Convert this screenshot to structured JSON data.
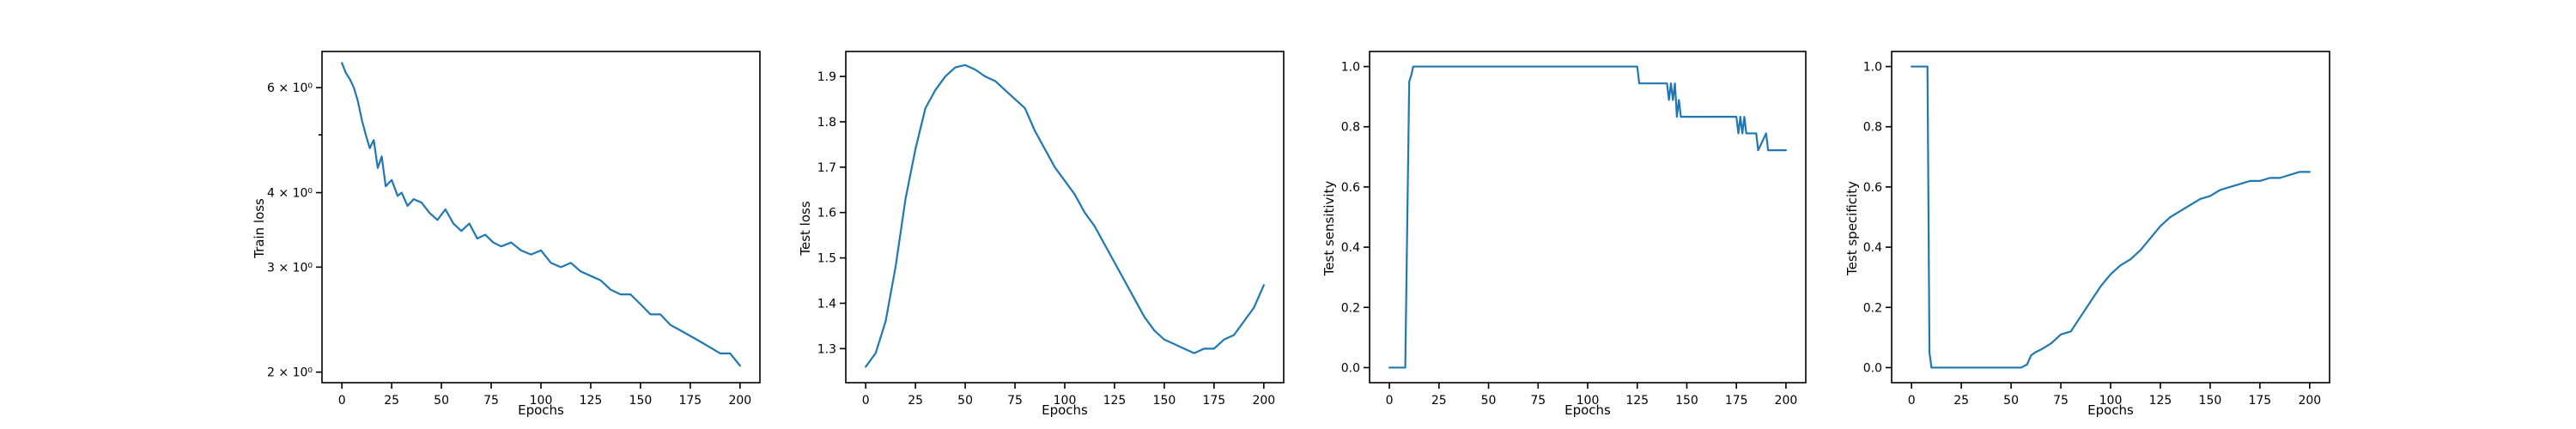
{
  "colors": {
    "series": "#1f77b4",
    "axes": "#000000",
    "background": "#ffffff"
  },
  "chart_data": [
    {
      "type": "line",
      "xlabel": "Epochs",
      "ylabel": "Train loss",
      "yscale": "log",
      "grid": false,
      "xlim": [
        -10,
        210
      ],
      "ylim": [
        1.92,
        6.9
      ],
      "xticks": [
        0,
        25,
        50,
        75,
        100,
        125,
        150,
        175,
        200
      ],
      "xtick_labels": [
        "0",
        "25",
        "50",
        "75",
        "100",
        "125",
        "150",
        "175",
        "200"
      ],
      "yticks": [
        2,
        3,
        4,
        6
      ],
      "ytick_labels": [
        "2 × 10⁰",
        "3 × 10⁰",
        "4 × 10⁰",
        "6 × 10⁰"
      ],
      "x": [
        0,
        2,
        4,
        6,
        8,
        10,
        12,
        14,
        16,
        18,
        20,
        22,
        25,
        28,
        30,
        33,
        36,
        40,
        44,
        48,
        52,
        56,
        60,
        64,
        68,
        72,
        76,
        80,
        85,
        90,
        95,
        100,
        105,
        110,
        115,
        120,
        125,
        130,
        135,
        140,
        145,
        150,
        155,
        160,
        165,
        170,
        175,
        180,
        185,
        190,
        195,
        200
      ],
      "y": [
        6.6,
        6.35,
        6.2,
        6.0,
        5.7,
        5.3,
        5.0,
        4.75,
        4.9,
        4.4,
        4.6,
        4.1,
        4.2,
        3.95,
        4.0,
        3.8,
        3.9,
        3.85,
        3.7,
        3.6,
        3.75,
        3.55,
        3.45,
        3.55,
        3.35,
        3.4,
        3.3,
        3.25,
        3.3,
        3.2,
        3.15,
        3.2,
        3.05,
        3.0,
        3.05,
        2.95,
        2.9,
        2.85,
        2.75,
        2.7,
        2.7,
        2.6,
        2.5,
        2.5,
        2.4,
        2.35,
        2.3,
        2.25,
        2.2,
        2.15,
        2.15,
        2.05
      ]
    },
    {
      "type": "line",
      "xlabel": "Epochs",
      "ylabel": "Test loss",
      "grid": false,
      "xlim": [
        -10,
        210
      ],
      "ylim": [
        1.225,
        1.955
      ],
      "xticks": [
        0,
        25,
        50,
        75,
        100,
        125,
        150,
        175,
        200
      ],
      "xtick_labels": [
        "0",
        "25",
        "50",
        "75",
        "100",
        "125",
        "150",
        "175",
        "200"
      ],
      "yticks": [
        1.3,
        1.4,
        1.5,
        1.6,
        1.7,
        1.8,
        1.9
      ],
      "ytick_labels": [
        "1.3",
        "1.4",
        "1.5",
        "1.6",
        "1.7",
        "1.8",
        "1.9"
      ],
      "x": [
        0,
        5,
        10,
        15,
        20,
        25,
        30,
        35,
        40,
        45,
        50,
        55,
        60,
        65,
        70,
        75,
        80,
        85,
        90,
        95,
        100,
        105,
        110,
        115,
        120,
        125,
        130,
        135,
        140,
        145,
        150,
        155,
        160,
        165,
        170,
        175,
        180,
        185,
        190,
        195,
        200
      ],
      "y": [
        1.26,
        1.29,
        1.36,
        1.48,
        1.63,
        1.74,
        1.83,
        1.87,
        1.9,
        1.92,
        1.925,
        1.915,
        1.9,
        1.89,
        1.87,
        1.85,
        1.83,
        1.78,
        1.74,
        1.7,
        1.67,
        1.64,
        1.6,
        1.57,
        1.53,
        1.49,
        1.45,
        1.41,
        1.37,
        1.34,
        1.32,
        1.31,
        1.3,
        1.29,
        1.3,
        1.3,
        1.32,
        1.33,
        1.36,
        1.39,
        1.44
      ]
    },
    {
      "type": "line",
      "xlabel": "Epochs",
      "ylabel": "Test sensitivity",
      "grid": false,
      "xlim": [
        -10,
        210
      ],
      "ylim": [
        -0.05,
        1.05
      ],
      "xticks": [
        0,
        25,
        50,
        75,
        100,
        125,
        150,
        175,
        200
      ],
      "xtick_labels": [
        "0",
        "25",
        "50",
        "75",
        "100",
        "125",
        "150",
        "175",
        "200"
      ],
      "yticks": [
        0.0,
        0.2,
        0.4,
        0.6,
        0.8,
        1.0
      ],
      "ytick_labels": [
        "0.0",
        "0.2",
        "0.4",
        "0.6",
        "0.8",
        "1.0"
      ],
      "x": [
        0,
        8,
        10,
        11,
        12,
        60,
        125,
        126,
        140,
        141,
        142,
        143,
        144,
        145,
        146,
        147,
        148,
        170,
        175,
        176,
        177,
        178,
        179,
        180,
        181,
        185,
        186,
        190,
        191,
        192,
        200
      ],
      "y": [
        0.0,
        0.0,
        0.95,
        0.97,
        1.0,
        1.0,
        1.0,
        0.944,
        0.944,
        0.889,
        0.944,
        0.889,
        0.944,
        0.833,
        0.889,
        0.833,
        0.833,
        0.833,
        0.833,
        0.778,
        0.833,
        0.778,
        0.833,
        0.778,
        0.778,
        0.778,
        0.722,
        0.778,
        0.722,
        0.722,
        0.722
      ]
    },
    {
      "type": "line",
      "xlabel": "Epochs",
      "ylabel": "Test specificity",
      "grid": false,
      "xlim": [
        -10,
        210
      ],
      "ylim": [
        -0.05,
        1.05
      ],
      "xticks": [
        0,
        25,
        50,
        75,
        100,
        125,
        150,
        175,
        200
      ],
      "xtick_labels": [
        "0",
        "25",
        "50",
        "75",
        "100",
        "125",
        "150",
        "175",
        "200"
      ],
      "yticks": [
        0.0,
        0.2,
        0.4,
        0.6,
        0.8,
        1.0
      ],
      "ytick_labels": [
        "0.0",
        "0.2",
        "0.4",
        "0.6",
        "0.8",
        "1.0"
      ],
      "x": [
        0,
        8,
        9,
        10,
        12,
        20,
        30,
        40,
        50,
        55,
        58,
        60,
        62,
        65,
        70,
        75,
        80,
        85,
        90,
        95,
        100,
        105,
        110,
        115,
        120,
        125,
        130,
        135,
        140,
        145,
        150,
        155,
        160,
        165,
        170,
        175,
        180,
        185,
        190,
        195,
        200
      ],
      "y": [
        1.0,
        1.0,
        0.05,
        0.0,
        0.0,
        0.0,
        0.0,
        0.0,
        0.0,
        0.0,
        0.01,
        0.04,
        0.05,
        0.06,
        0.08,
        0.11,
        0.12,
        0.17,
        0.22,
        0.27,
        0.31,
        0.34,
        0.36,
        0.39,
        0.43,
        0.47,
        0.5,
        0.52,
        0.54,
        0.56,
        0.57,
        0.59,
        0.6,
        0.61,
        0.62,
        0.62,
        0.63,
        0.63,
        0.64,
        0.65,
        0.65
      ]
    }
  ]
}
